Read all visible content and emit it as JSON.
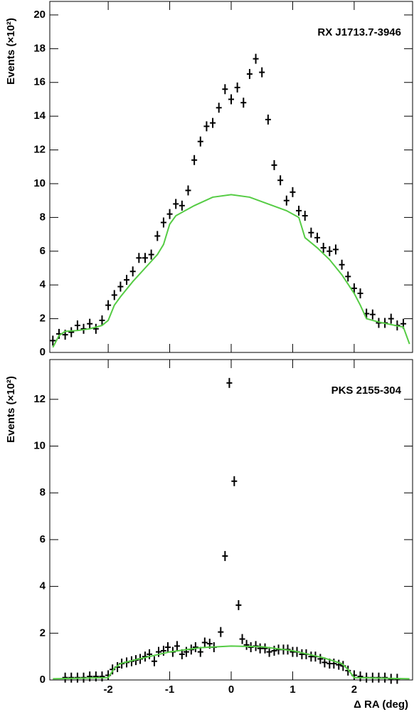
{
  "chart_data": [
    {
      "type": "scatter",
      "title": "RX J1713.7-3946",
      "y_label": "Events (×10²)",
      "xlim": [
        -2.95,
        2.95
      ],
      "ylim": [
        0,
        20.8
      ],
      "yticks": [
        0,
        2,
        4,
        6,
        8,
        10,
        12,
        14,
        16,
        18,
        20
      ],
      "series": [
        {
          "type": "scatter",
          "color": "#000000",
          "x": [
            -2.9,
            -2.8,
            -2.7,
            -2.6,
            -2.5,
            -2.4,
            -2.3,
            -2.2,
            -2.1,
            -2.0,
            -1.9,
            -1.8,
            -1.7,
            -1.6,
            -1.5,
            -1.4,
            -1.3,
            -1.2,
            -1.1,
            -1.0,
            -0.9,
            -0.8,
            -0.7,
            -0.6,
            -0.5,
            -0.4,
            -0.3,
            -0.2,
            -0.1,
            0.0,
            0.1,
            0.2,
            0.3,
            0.4,
            0.5,
            0.6,
            0.7,
            0.8,
            0.9,
            1.0,
            1.1,
            1.2,
            1.3,
            1.4,
            1.5,
            1.6,
            1.7,
            1.8,
            1.9,
            2.0,
            2.1,
            2.2,
            2.3,
            2.4,
            2.5,
            2.6,
            2.7,
            2.8
          ],
          "values": [
            0.7,
            1.1,
            1.05,
            1.2,
            1.6,
            1.4,
            1.7,
            1.4,
            1.9,
            2.8,
            3.4,
            3.9,
            4.3,
            4.8,
            5.6,
            5.6,
            5.8,
            6.9,
            7.7,
            8.2,
            8.8,
            8.7,
            9.6,
            11.4,
            12.5,
            13.4,
            13.6,
            14.5,
            15.6,
            15.0,
            15.7,
            14.8,
            16.5,
            17.4,
            16.6,
            13.8,
            11.1,
            10.2,
            9.0,
            9.5,
            8.4,
            8.1,
            7.1,
            6.8,
            6.2,
            6.0,
            6.1,
            5.2,
            4.5,
            3.8,
            3.5,
            2.3,
            2.25,
            1.75,
            1.75,
            2.0,
            1.6,
            1.7
          ]
        },
        {
          "type": "line",
          "color": "#55cc44",
          "x": [
            -2.9,
            -2.8,
            -2.7,
            -2.5,
            -2.3,
            -2.1,
            -2.0,
            -1.9,
            -1.8,
            -1.6,
            -1.4,
            -1.2,
            -1.1,
            -1.0,
            -0.9,
            -0.6,
            -0.3,
            0,
            0.3,
            0.6,
            0.9,
            1.1,
            1.2,
            1.4,
            1.6,
            1.8,
            2.0,
            2.1,
            2.2,
            2.4,
            2.6,
            2.8,
            2.9
          ],
          "values": [
            0.3,
            1.0,
            1.25,
            1.3,
            1.4,
            1.6,
            1.9,
            2.8,
            3.3,
            4.2,
            5.0,
            5.8,
            6.4,
            7.6,
            8.1,
            8.7,
            9.2,
            9.35,
            9.2,
            8.8,
            8.4,
            8.0,
            6.8,
            6.2,
            5.5,
            4.6,
            3.5,
            2.8,
            2.0,
            1.8,
            1.65,
            1.5,
            0.5
          ]
        }
      ]
    },
    {
      "type": "scatter",
      "title": "PKS 2155-304",
      "y_label": "Events (×10²)",
      "x_label": "Δ RA (deg)",
      "xlim": [
        -2.95,
        2.95
      ],
      "ylim": [
        0,
        13.7
      ],
      "yticks": [
        0,
        2,
        4,
        6,
        8,
        10,
        12
      ],
      "xticks": [
        -2,
        -1,
        0,
        1,
        2
      ],
      "series": [
        {
          "type": "scatter",
          "color": "#000000",
          "x": [
            -2.7,
            -2.6,
            -2.5,
            -2.4,
            -2.3,
            -2.2,
            -2.1,
            -2.0,
            -1.93,
            -1.85,
            -1.78,
            -1.7,
            -1.62,
            -1.55,
            -1.48,
            -1.4,
            -1.33,
            -1.25,
            -1.18,
            -1.1,
            -1.03,
            -0.95,
            -0.88,
            -0.8,
            -0.73,
            -0.65,
            -0.58,
            -0.5,
            -0.43,
            -0.35,
            -0.28,
            -0.17,
            -0.1,
            -0.03,
            0.05,
            0.12,
            0.18,
            0.25,
            0.32,
            0.4,
            0.47,
            0.55,
            0.62,
            0.7,
            0.77,
            0.85,
            0.92,
            1.0,
            1.07,
            1.15,
            1.22,
            1.3,
            1.37,
            1.45,
            1.52,
            1.6,
            1.67,
            1.75,
            1.82,
            1.9,
            2.0,
            2.1,
            2.2,
            2.3,
            2.4,
            2.5,
            2.6,
            2.7
          ],
          "values": [
            0.1,
            0.1,
            0.1,
            0.1,
            0.15,
            0.15,
            0.15,
            0.2,
            0.45,
            0.55,
            0.7,
            0.75,
            0.8,
            0.85,
            0.9,
            1.0,
            1.1,
            0.8,
            1.2,
            1.25,
            1.4,
            1.2,
            1.45,
            1.1,
            1.2,
            1.3,
            1.4,
            1.2,
            1.6,
            1.55,
            1.4,
            2.05,
            5.3,
            12.7,
            8.5,
            3.2,
            1.75,
            1.5,
            1.4,
            1.45,
            1.35,
            1.35,
            1.2,
            1.25,
            1.3,
            1.3,
            1.3,
            1.2,
            1.2,
            1.1,
            1.1,
            1.0,
            1.0,
            0.9,
            0.75,
            0.7,
            0.7,
            0.65,
            0.6,
            0.4,
            0.2,
            0.15,
            0.1,
            0.1,
            0.1,
            0.1,
            0.05,
            0.05
          ]
        },
        {
          "type": "line",
          "color": "#55cc44",
          "x": [
            -2.9,
            -2.0,
            -1.9,
            -1.8,
            -1.5,
            -1.0,
            -0.5,
            0,
            0.5,
            1.0,
            1.5,
            1.8,
            1.9,
            2.0,
            2.9
          ],
          "values": [
            0.05,
            0.1,
            0.5,
            0.7,
            0.9,
            1.2,
            1.38,
            1.45,
            1.42,
            1.25,
            0.95,
            0.7,
            0.45,
            0.1,
            0.05
          ]
        }
      ]
    }
  ]
}
